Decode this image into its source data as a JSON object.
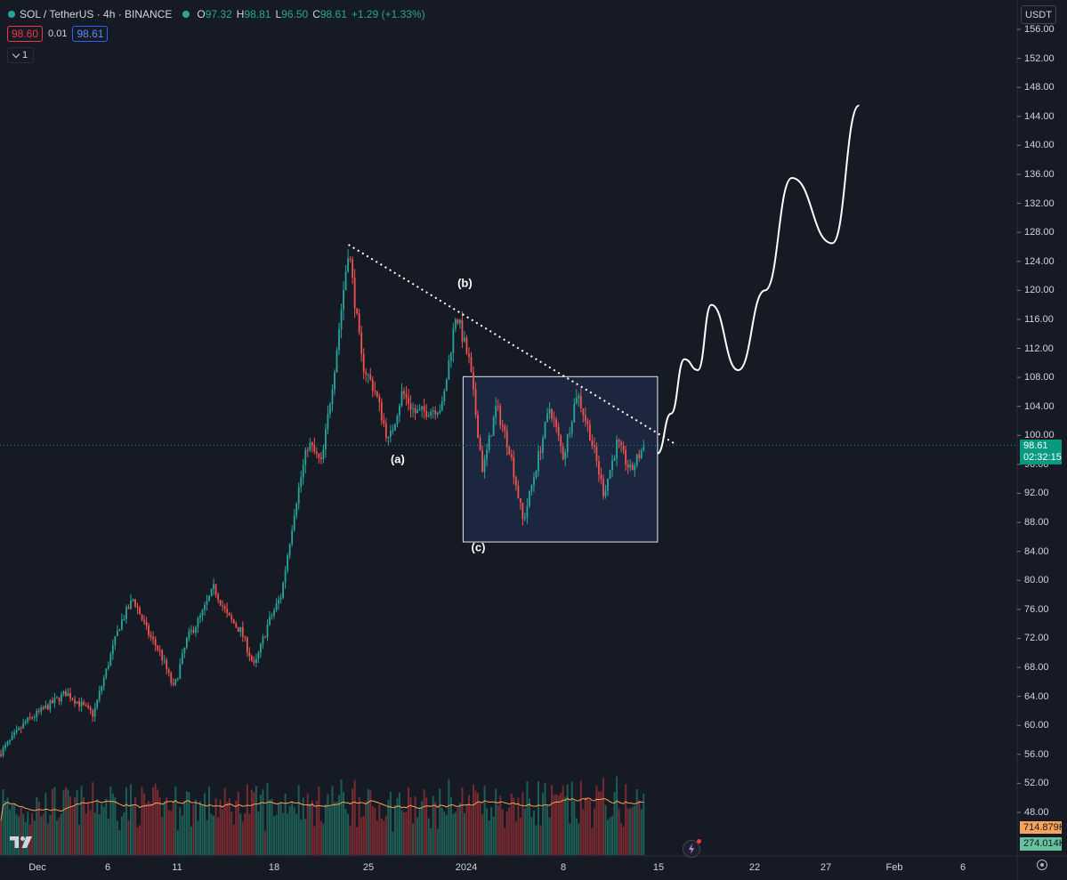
{
  "header": {
    "symbol_title": "SOL / TetherUS · 4h · BINANCE",
    "ohlc": [
      {
        "key": "O",
        "value": "97.32"
      },
      {
        "key": "H",
        "value": "98.81"
      },
      {
        "key": "L",
        "value": "96.50"
      },
      {
        "key": "C",
        "value": "98.61"
      }
    ],
    "change": "+1.29 (+1.33%)",
    "sell_price": "98.60",
    "spread": "0.01",
    "buy_price": "98.61",
    "indicator_count": "1",
    "currency": "USDT"
  },
  "current_price": {
    "value": "98.61",
    "countdown": "02:32:15"
  },
  "volume_labels": {
    "ma": "714.879K",
    "volume": "274.014K"
  },
  "colors": {
    "background": "#161a25",
    "up": "#26a69a",
    "down": "#ef5350",
    "volume_ma": "#f7a35c",
    "rect_fill": "#1e2c4a",
    "current_price": "#089981"
  },
  "icons": {
    "logo": "tradingview-logo-icon",
    "settings": "gear-icon",
    "alert": "lightning-icon"
  },
  "chart_data": {
    "type": "candlestick",
    "price_axis": {
      "ticks": [
        "156.00",
        "152.00",
        "148.00",
        "144.00",
        "140.00",
        "136.00",
        "132.00",
        "128.00",
        "124.00",
        "120.00",
        "116.00",
        "112.00",
        "108.00",
        "104.00",
        "100.00",
        "96.00",
        "92.00",
        "88.00",
        "84.00",
        "80.00",
        "76.00",
        "72.00",
        "68.00",
        "64.00",
        "60.00",
        "56.00",
        "52.00",
        "48.00"
      ],
      "range": [
        44,
        158
      ]
    },
    "time_axis": {
      "labels": [
        "Dec",
        "6",
        "11",
        "18",
        "25",
        "2024",
        "8",
        "15",
        "22",
        "27",
        "Feb",
        "6"
      ]
    },
    "price_path": [
      [
        "2023-11-30",
        56
      ],
      [
        "2023-12-02",
        60.5
      ],
      [
        "2023-12-05",
        64.5
      ],
      [
        "2023-12-07",
        61.5
      ],
      [
        "2023-12-09",
        74
      ],
      [
        "2023-12-10",
        77.5
      ],
      [
        "2023-12-11",
        73
      ],
      [
        "2023-12-12",
        70
      ],
      [
        "2023-12-13",
        65
      ],
      [
        "2023-12-14",
        72
      ],
      [
        "2023-12-15",
        75
      ],
      [
        "2023-12-16",
        79
      ],
      [
        "2023-12-17",
        75
      ],
      [
        "2023-12-18",
        73
      ],
      [
        "2023-12-19",
        68
      ],
      [
        "2023-12-20",
        74
      ],
      [
        "2023-12-21",
        78
      ],
      [
        "2023-12-22",
        90
      ],
      [
        "2023-12-23",
        99
      ],
      [
        "2023-12-24",
        96
      ],
      [
        "2023-12-25",
        110
      ],
      [
        "2023-12-26",
        126
      ],
      [
        "2023-12-27",
        110
      ],
      [
        "2023-12-28",
        106
      ],
      [
        "2023-12-29",
        99
      ],
      [
        "2023-12-30",
        106
      ],
      [
        "2023-12-31",
        103
      ],
      [
        "2024-01-02",
        104
      ],
      [
        "2024-01-03",
        117
      ],
      [
        "2024-01-04",
        110
      ],
      [
        "2024-01-05",
        95
      ],
      [
        "2024-01-06",
        104
      ],
      [
        "2024-01-07",
        98
      ],
      [
        "2024-01-08",
        88
      ],
      [
        "2024-01-09",
        96
      ],
      [
        "2024-01-10",
        104
      ],
      [
        "2024-01-11",
        97
      ],
      [
        "2024-01-12",
        106
      ],
      [
        "2024-01-13",
        100
      ],
      [
        "2024-01-14",
        92
      ],
      [
        "2024-01-15",
        99
      ],
      [
        "2024-01-16",
        95
      ],
      [
        "2024-01-17",
        98.6
      ]
    ],
    "range_box": {
      "from": "2024-01-03",
      "to": "2024-01-18",
      "low": 85.3,
      "high": 108.1
    },
    "trendline": {
      "from": [
        "2023-12-26",
        126.3
      ],
      "to": [
        "2024-01-18",
        98.8
      ]
    },
    "annotations": [
      {
        "label": "(a)",
        "date": "2023-12-29",
        "price": 96.2
      },
      {
        "label": "(b)",
        "date": "2024-01-03",
        "price": 120.5
      },
      {
        "label": "(c)",
        "date": "2024-01-04",
        "price": 84
      }
    ],
    "projection": [
      [
        "2024-01-18",
        97.5
      ],
      [
        "2024-01-19",
        103
      ],
      [
        "2024-01-20",
        110.5
      ],
      [
        "2024-01-21",
        109
      ],
      [
        "2024-01-22",
        118
      ],
      [
        "2024-01-24",
        109
      ],
      [
        "2024-01-26",
        120
      ],
      [
        "2024-01-28",
        135.5
      ],
      [
        "2024-01-31",
        126.5
      ],
      [
        "2024-02-02",
        145.5
      ]
    ],
    "volume": {
      "ma_series": "Volume MA"
    }
  }
}
